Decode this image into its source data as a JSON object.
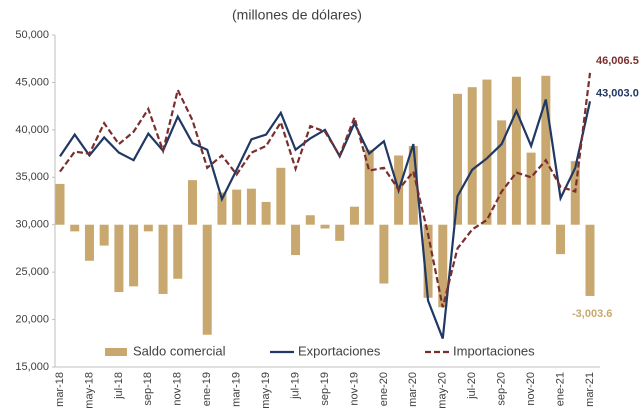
{
  "chart_data": {
    "type": "bar-line",
    "title": "(millones de dólares)",
    "categories": [
      "mar-18",
      null,
      "may-18",
      null,
      "jul-18",
      null,
      "sep-18",
      null,
      "nov-18",
      null,
      "ene-19",
      null,
      "mar-19",
      null,
      "may-19",
      null,
      "jul-19",
      null,
      "sep-19",
      null,
      "nov-19",
      null,
      "ene-20",
      null,
      "mar-20",
      null,
      "may-20",
      null,
      "jul-20",
      null,
      "sep-20",
      null,
      "nov-20",
      null,
      "ene-21",
      null,
      "mar-21"
    ],
    "ylim": [
      15000,
      50000
    ],
    "yticks": [
      {
        "value": 15000,
        "label": "15,000"
      },
      {
        "value": 20000,
        "label": "20,000"
      },
      {
        "value": 25000,
        "label": "25,000"
      },
      {
        "value": 30000,
        "label": "30,000"
      },
      {
        "value": 35000,
        "label": "35,000"
      },
      {
        "value": 40000,
        "label": "40,000"
      },
      {
        "value": 45000,
        "label": "45,000"
      },
      {
        "value": 50000,
        "label": "50,000"
      }
    ],
    "y2lim": [
      -6000,
      8000
    ],
    "legend": "bottom",
    "series": [
      {
        "name": "Saldo comercial",
        "kind": "bar",
        "axis": "y2",
        "color": "#c8a86e",
        "values": [
          1720,
          -280,
          -1520,
          -880,
          -2840,
          -2600,
          -280,
          -2920,
          -2280,
          1880,
          -4640,
          1360,
          1480,
          1520,
          960,
          2400,
          -1280,
          400,
          -160,
          -680,
          760,
          3160,
          -2480,
          2920,
          3320,
          -3080,
          -3480,
          5520,
          5800,
          6120,
          4400,
          6240,
          3040,
          6280,
          -1240,
          2680,
          -3003.6
        ],
        "value_labels": [
          null,
          null,
          null,
          null,
          null,
          null,
          null,
          null,
          null,
          null,
          null,
          null,
          null,
          null,
          null,
          null,
          null,
          null,
          null,
          null,
          null,
          null,
          null,
          null,
          null,
          null,
          null,
          null,
          null,
          null,
          null,
          null,
          null,
          null,
          null,
          null,
          "-3,003.6"
        ]
      },
      {
        "name": "Exportaciones",
        "kind": "line",
        "color": "#1f3864",
        "values": [
          37200,
          39500,
          37300,
          39200,
          37600,
          36800,
          39600,
          37800,
          41400,
          38600,
          37900,
          32700,
          35800,
          39000,
          39500,
          41800,
          37900,
          39100,
          40000,
          37200,
          40700,
          37500,
          38800,
          33600,
          38500,
          22000,
          18000,
          33000,
          35800,
          37000,
          38500,
          42000,
          38300,
          43200,
          32800,
          36000,
          43003
        ],
        "value_labels": [
          null,
          null,
          null,
          null,
          null,
          null,
          null,
          null,
          null,
          null,
          null,
          null,
          null,
          null,
          null,
          null,
          null,
          null,
          null,
          null,
          null,
          null,
          null,
          null,
          null,
          null,
          null,
          null,
          null,
          null,
          null,
          null,
          null,
          null,
          null,
          null,
          "43,003.0"
        ]
      },
      {
        "name": "Importaciones",
        "kind": "dashed-line",
        "color": "#7a2e2e",
        "values": [
          35600,
          37700,
          37500,
          40700,
          38500,
          39800,
          42200,
          37800,
          44200,
          41000,
          36000,
          37300,
          35300,
          37600,
          38300,
          40800,
          35900,
          40400,
          39800,
          37300,
          41300,
          35700,
          36000,
          33700,
          35600,
          29000,
          21300,
          27500,
          29500,
          30500,
          33500,
          35500,
          35000,
          36800,
          34000,
          33500,
          46006.5
        ],
        "value_labels": [
          null,
          null,
          null,
          null,
          null,
          null,
          null,
          null,
          null,
          null,
          null,
          null,
          null,
          null,
          null,
          null,
          null,
          null,
          null,
          null,
          null,
          null,
          null,
          null,
          null,
          null,
          null,
          null,
          null,
          null,
          null,
          null,
          null,
          null,
          null,
          null,
          "46,006.5"
        ]
      }
    ]
  }
}
